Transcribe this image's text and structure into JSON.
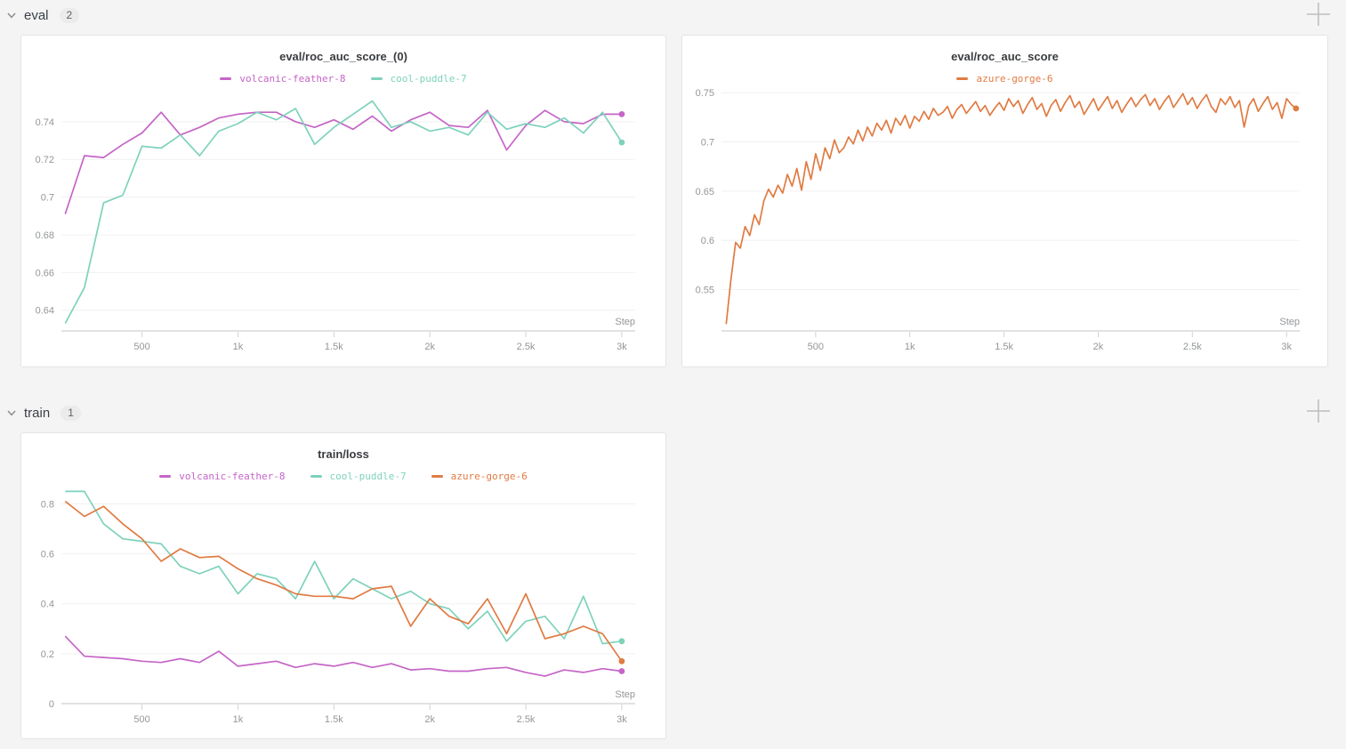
{
  "sections": [
    {
      "label": "eval",
      "count": "2"
    },
    {
      "label": "train",
      "count": "1"
    }
  ],
  "colors": {
    "volcanic-feather-8": "#C565C7",
    "cool-puddle-7": "#7ED2BC",
    "azure-gorge-6": "#E07B42",
    "grid": "#f0f0f1",
    "axis": "#d8d8d8",
    "tick_text": "#939699"
  },
  "chart_data": [
    {
      "type": "line",
      "title": "eval/roc_auc_score_(0)",
      "xlabel": "Step",
      "ylabel": "",
      "grid": true,
      "legend_position": "top",
      "xlim": [
        80,
        3070
      ],
      "ylim": [
        0.629,
        0.7555
      ],
      "x_tick_values": [
        500,
        1000,
        1500,
        2000,
        2500,
        3000
      ],
      "x_tick_labels": [
        "500",
        "1k",
        "1.5k",
        "2k",
        "2.5k",
        "3k"
      ],
      "y_tick_values": [
        0.64,
        0.66,
        0.68,
        0.7,
        0.72,
        0.74
      ],
      "y_tick_labels": [
        "0.64",
        "0.66",
        "0.68",
        "0.7",
        "0.72",
        "0.74"
      ],
      "x_start": 100,
      "x_step": 100,
      "series": [
        {
          "name": "volcanic-feather-8",
          "color": "#C565C7",
          "y": [
            0.691,
            0.722,
            0.721,
            0.728,
            0.734,
            0.745,
            0.733,
            0.737,
            0.742,
            0.744,
            0.745,
            0.745,
            0.74,
            0.737,
            0.741,
            0.736,
            0.743,
            0.735,
            0.741,
            0.745,
            0.738,
            0.737,
            0.746,
            0.725,
            0.738,
            0.746,
            0.74,
            0.739,
            0.744,
            0.744
          ]
        },
        {
          "name": "cool-puddle-7",
          "color": "#7ED2BC",
          "y": [
            0.633,
            0.652,
            0.697,
            0.701,
            0.727,
            0.726,
            0.733,
            0.722,
            0.735,
            0.739,
            0.745,
            0.741,
            0.747,
            0.728,
            0.737,
            0.744,
            0.751,
            0.737,
            0.74,
            0.735,
            0.737,
            0.733,
            0.745,
            0.736,
            0.739,
            0.737,
            0.742,
            0.734,
            0.745,
            0.729
          ]
        }
      ]
    },
    {
      "type": "line",
      "title": "eval/roc_auc_score",
      "xlabel": "Step",
      "ylabel": "",
      "grid": true,
      "legend_position": "top",
      "xlim": [
        0,
        3070
      ],
      "ylim": [
        0.508,
        0.752
      ],
      "x_tick_values": [
        500,
        1000,
        1500,
        2000,
        2500,
        3000
      ],
      "x_tick_labels": [
        "500",
        "1k",
        "1.5k",
        "2k",
        "2.5k",
        "3k"
      ],
      "y_tick_values": [
        0.55,
        0.6,
        0.65,
        0.7,
        0.75
      ],
      "y_tick_labels": [
        "0.55",
        "0.6",
        "0.65",
        "0.7",
        "0.75"
      ],
      "x_start": 25,
      "x_step": 25,
      "series": [
        {
          "name": "azure-gorge-6",
          "color": "#E07B42",
          "y": [
            0.515,
            0.56,
            0.598,
            0.592,
            0.614,
            0.605,
            0.626,
            0.616,
            0.64,
            0.652,
            0.644,
            0.656,
            0.648,
            0.667,
            0.655,
            0.673,
            0.651,
            0.68,
            0.662,
            0.688,
            0.671,
            0.694,
            0.683,
            0.702,
            0.689,
            0.694,
            0.705,
            0.698,
            0.712,
            0.701,
            0.715,
            0.706,
            0.719,
            0.712,
            0.722,
            0.709,
            0.724,
            0.717,
            0.727,
            0.714,
            0.726,
            0.721,
            0.731,
            0.723,
            0.734,
            0.727,
            0.73,
            0.736,
            0.724,
            0.733,
            0.738,
            0.729,
            0.735,
            0.741,
            0.731,
            0.737,
            0.727,
            0.734,
            0.74,
            0.732,
            0.744,
            0.736,
            0.742,
            0.729,
            0.738,
            0.745,
            0.733,
            0.739,
            0.726,
            0.737,
            0.743,
            0.731,
            0.74,
            0.747,
            0.735,
            0.741,
            0.728,
            0.736,
            0.744,
            0.732,
            0.739,
            0.746,
            0.734,
            0.742,
            0.73,
            0.738,
            0.745,
            0.736,
            0.743,
            0.748,
            0.737,
            0.744,
            0.733,
            0.741,
            0.747,
            0.735,
            0.742,
            0.749,
            0.738,
            0.745,
            0.734,
            0.742,
            0.748,
            0.736,
            0.73,
            0.744,
            0.738,
            0.746,
            0.735,
            0.742,
            0.715,
            0.737,
            0.744,
            0.731,
            0.739,
            0.746,
            0.733,
            0.74,
            0.724,
            0.744,
            0.738,
            0.734
          ]
        }
      ]
    },
    {
      "type": "line",
      "title": "train/loss",
      "xlabel": "Step",
      "ylabel": "",
      "grid": true,
      "legend_position": "top",
      "xlim": [
        80,
        3070
      ],
      "ylim": [
        0,
        0.855
      ],
      "x_tick_values": [
        500,
        1000,
        1500,
        2000,
        2500,
        3000
      ],
      "x_tick_labels": [
        "500",
        "1k",
        "1.5k",
        "2k",
        "2.5k",
        "3k"
      ],
      "y_tick_values": [
        0,
        0.2,
        0.4,
        0.6,
        0.8
      ],
      "y_tick_labels": [
        "0",
        "0.2",
        "0.4",
        "0.6",
        "0.8"
      ],
      "x_start": 100,
      "x_step": 100,
      "series": [
        {
          "name": "volcanic-feather-8",
          "color": "#C565C7",
          "y": [
            0.27,
            0.19,
            0.185,
            0.18,
            0.17,
            0.165,
            0.18,
            0.165,
            0.21,
            0.15,
            0.16,
            0.17,
            0.145,
            0.16,
            0.15,
            0.165,
            0.145,
            0.16,
            0.135,
            0.14,
            0.13,
            0.13,
            0.14,
            0.145,
            0.125,
            0.11,
            0.135,
            0.125,
            0.14,
            0.13
          ]
        },
        {
          "name": "cool-puddle-7",
          "color": "#7ED2BC",
          "y": [
            0.85,
            0.85,
            0.72,
            0.66,
            0.65,
            0.64,
            0.55,
            0.52,
            0.55,
            0.44,
            0.52,
            0.5,
            0.42,
            0.57,
            0.42,
            0.5,
            0.46,
            0.42,
            0.45,
            0.4,
            0.38,
            0.3,
            0.37,
            0.25,
            0.33,
            0.35,
            0.26,
            0.43,
            0.24,
            0.25
          ]
        },
        {
          "name": "azure-gorge-6",
          "color": "#E07B42",
          "y": [
            0.81,
            0.75,
            0.79,
            0.72,
            0.66,
            0.57,
            0.62,
            0.585,
            0.59,
            0.54,
            0.5,
            0.475,
            0.44,
            0.43,
            0.43,
            0.42,
            0.46,
            0.47,
            0.31,
            0.42,
            0.35,
            0.32,
            0.42,
            0.28,
            0.44,
            0.26,
            0.28,
            0.31,
            0.28,
            0.17
          ]
        }
      ]
    }
  ]
}
